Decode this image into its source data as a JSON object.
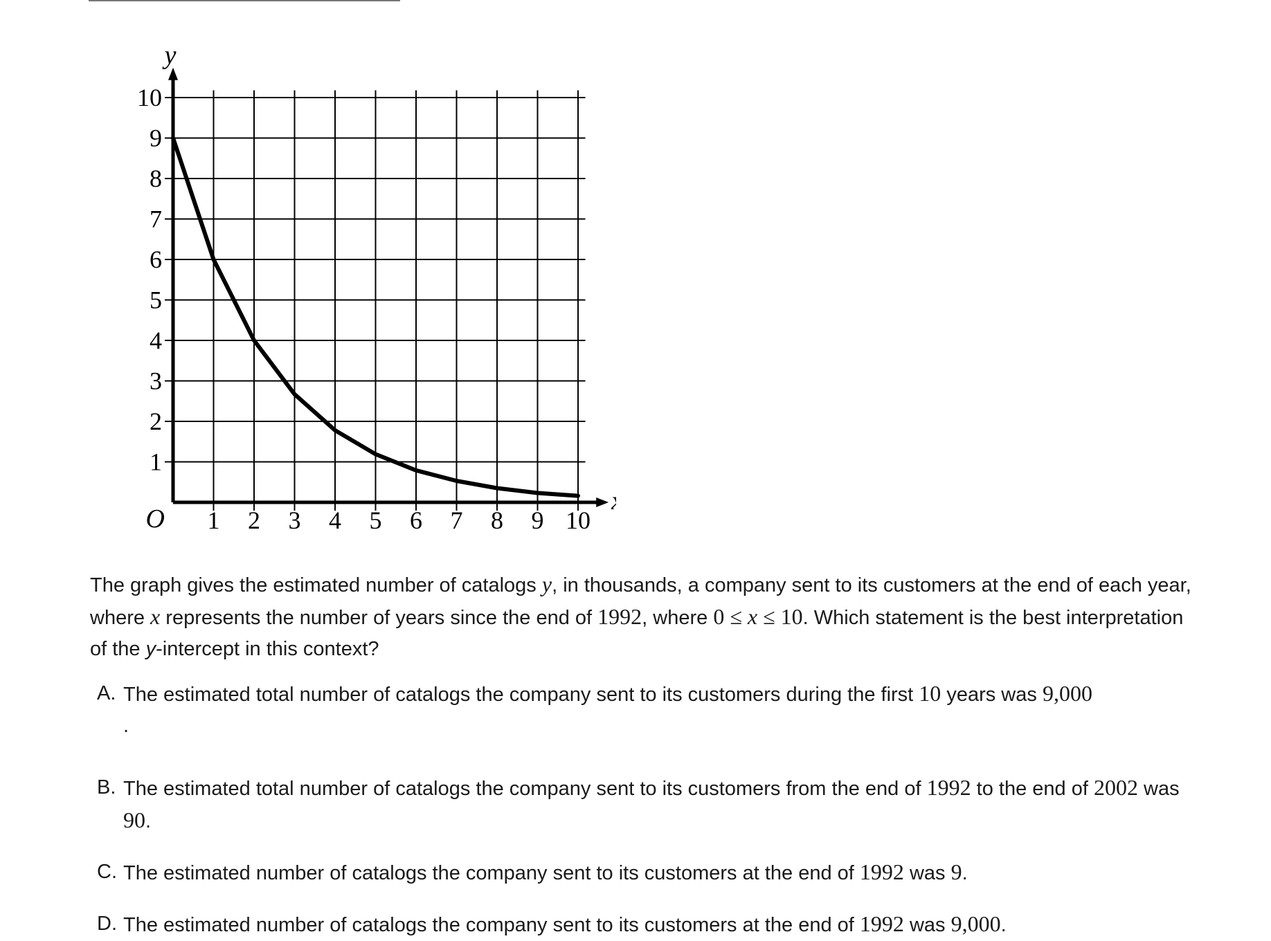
{
  "chart_data": {
    "type": "line",
    "y_axis_label": "y",
    "x_axis_label": "x",
    "origin_label": "O",
    "x_ticks": [
      "1",
      "2",
      "3",
      "4",
      "5",
      "6",
      "7",
      "8",
      "9",
      "10"
    ],
    "y_ticks": [
      "1",
      "2",
      "3",
      "4",
      "5",
      "6",
      "7",
      "8",
      "9",
      "10"
    ],
    "xlim": [
      0,
      10
    ],
    "ylim": [
      0,
      10
    ],
    "grid": true,
    "series": [
      {
        "x": [
          0,
          1,
          2,
          3,
          4,
          5,
          6,
          7,
          8,
          9,
          10
        ],
        "y": [
          9,
          6,
          4,
          2.67,
          1.78,
          1.19,
          0.79,
          0.53,
          0.35,
          0.23,
          0.16
        ]
      }
    ]
  },
  "question": {
    "p1": "The graph gives the estimated number of catalogs ",
    "v1": "y",
    "p2": ", in thousands, a company sent to its customers at the end of each year, where ",
    "v2": "x",
    "p3": " represents the number of years since the end of ",
    "m1": "1992",
    "p4": ", where ",
    "m2": "0 ≤ ",
    "v3": "x",
    "m3": " ≤ 10",
    "p5": ". Which statement is the best interpretation of the ",
    "v4": "y",
    "p6": "-intercept in this context?"
  },
  "choices": {
    "a": {
      "letter": "A.",
      "t1": "The estimated total number of catalogs the company sent to its customers during the first ",
      "m1": "10",
      "t2": " years was ",
      "m2": "9,000",
      "t3": "."
    },
    "b": {
      "letter": "B.",
      "t1": "The estimated total number of catalogs the company sent to its customers from the end of ",
      "m1": "1992",
      "t2": " to the end of ",
      "m2": "2002",
      "t3": " was ",
      "m3": "90",
      "t4": "."
    },
    "c": {
      "letter": "C.",
      "t1": "The estimated number of catalogs the company sent to its customers at the end of ",
      "m1": "1992",
      "t2": " was ",
      "m2": "9",
      "t3": "."
    },
    "d": {
      "letter": "D.",
      "t1": "The estimated number of catalogs the company sent to its customers at the end of ",
      "m1": "1992",
      "t2": " was ",
      "m2": "9,000",
      "t3": "."
    }
  }
}
